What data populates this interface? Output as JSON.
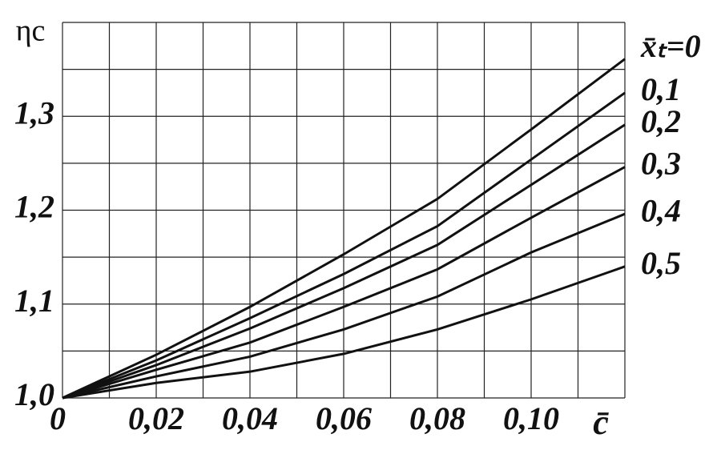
{
  "chart_data": {
    "type": "line",
    "y_label": "ηc",
    "x_label": "c̄",
    "x": [
      0,
      0.02,
      0.04,
      0.06,
      0.08,
      0.1,
      0.12
    ],
    "series": [
      {
        "name": "x̄ₜ=0",
        "color": "#111111",
        "values": [
          1.0,
          1.046,
          1.097,
          1.153,
          1.212,
          1.286,
          1.361
        ]
      },
      {
        "name": "0,1",
        "color": "#111111",
        "values": [
          1.0,
          1.04,
          1.085,
          1.132,
          1.183,
          1.254,
          1.325
        ]
      },
      {
        "name": "0,2",
        "color": "#111111",
        "values": [
          1.0,
          1.035,
          1.074,
          1.117,
          1.163,
          1.227,
          1.291
        ]
      },
      {
        "name": "0,3",
        "color": "#111111",
        "values": [
          1.0,
          1.03,
          1.059,
          1.097,
          1.137,
          1.192,
          1.246
        ]
      },
      {
        "name": "0,4",
        "color": "#111111",
        "values": [
          1.0,
          1.023,
          1.044,
          1.073,
          1.108,
          1.155,
          1.196
        ]
      },
      {
        "name": "0,5",
        "color": "#111111",
        "values": [
          1.0,
          1.016,
          1.028,
          1.047,
          1.073,
          1.105,
          1.14
        ]
      }
    ],
    "xlim": [
      0,
      0.12
    ],
    "ylim": [
      1.0,
      1.4
    ],
    "xticks": [
      0,
      {
        "value": 0.02,
        "label": "0,02"
      },
      {
        "value": 0.04,
        "label": "0,04"
      },
      {
        "value": 0.06,
        "label": "0,06"
      },
      {
        "value": 0.08,
        "label": "0,08"
      },
      {
        "value": 0.1,
        "label": "0,10"
      }
    ],
    "yticks": [
      {
        "value": 1.0,
        "label": "1,0"
      },
      {
        "value": 1.1,
        "label": "1,1"
      },
      {
        "value": 1.2,
        "label": "1,2"
      },
      {
        "value": 1.3,
        "label": "1,3"
      }
    ],
    "x_minor_grid": [
      0.01,
      0.03,
      0.05,
      0.07,
      0.09,
      0.11,
      0.12
    ],
    "y_minor_grid": [
      1.05,
      1.15,
      1.25,
      1.35,
      1.4
    ],
    "grid": true
  }
}
